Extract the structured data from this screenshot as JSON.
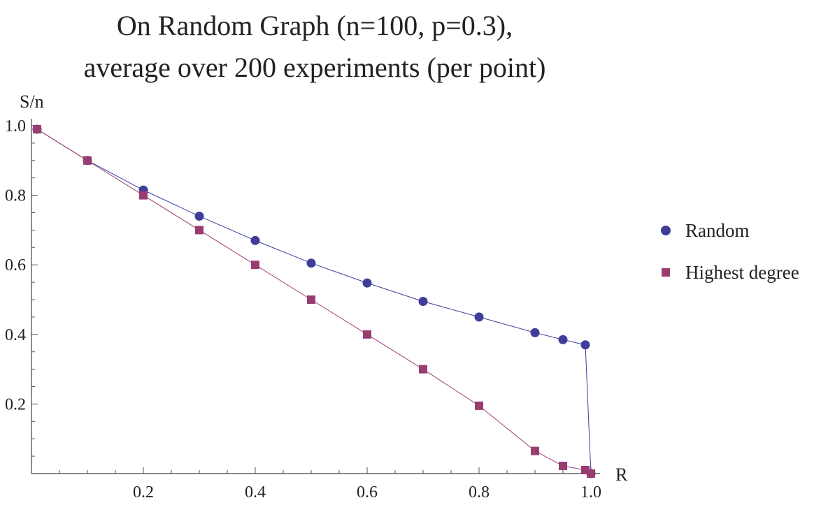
{
  "chart_data": {
    "type": "line",
    "title_lines": [
      "On Random Graph (n=100, p=0.3),",
      "average over 200 experiments (per point)"
    ],
    "xlabel": "R",
    "ylabel": "S/n",
    "xlim": [
      0,
      1.0
    ],
    "ylim": [
      0,
      1.0
    ],
    "x_ticks": [
      {
        "value": 0.2,
        "label": "0.2"
      },
      {
        "value": 0.4,
        "label": "0.4"
      },
      {
        "value": 0.6,
        "label": "0.6"
      },
      {
        "value": 0.8,
        "label": "0.8"
      },
      {
        "value": 1.0,
        "label": "1.0"
      }
    ],
    "y_ticks": [
      {
        "value": 0.2,
        "label": "0.2"
      },
      {
        "value": 0.4,
        "label": "0.4"
      },
      {
        "value": 0.6,
        "label": "0.6"
      },
      {
        "value": 0.8,
        "label": "0.8"
      },
      {
        "value": 1.0,
        "label": "1.0"
      }
    ],
    "grid": false,
    "legend_position": "right",
    "series": [
      {
        "name": "Random",
        "marker": "circle",
        "color": "#3f3d99",
        "points": [
          [
            0.01,
            0.99
          ],
          [
            0.1,
            0.9
          ],
          [
            0.2,
            0.815
          ],
          [
            0.3,
            0.74
          ],
          [
            0.4,
            0.67
          ],
          [
            0.5,
            0.605
          ],
          [
            0.6,
            0.548
          ],
          [
            0.7,
            0.495
          ],
          [
            0.8,
            0.45
          ],
          [
            0.9,
            0.405
          ],
          [
            0.95,
            0.385
          ],
          [
            0.99,
            0.37
          ],
          [
            1.0,
            0.0
          ]
        ]
      },
      {
        "name": "Highest degree",
        "marker": "square",
        "color": "#993d71",
        "points": [
          [
            0.01,
            0.99
          ],
          [
            0.1,
            0.9
          ],
          [
            0.2,
            0.8
          ],
          [
            0.3,
            0.7
          ],
          [
            0.4,
            0.6
          ],
          [
            0.5,
            0.5
          ],
          [
            0.6,
            0.4
          ],
          [
            0.7,
            0.3
          ],
          [
            0.8,
            0.195
          ],
          [
            0.9,
            0.065
          ],
          [
            0.95,
            0.022
          ],
          [
            0.99,
            0.01
          ],
          [
            1.0,
            0.0
          ]
        ]
      }
    ]
  }
}
